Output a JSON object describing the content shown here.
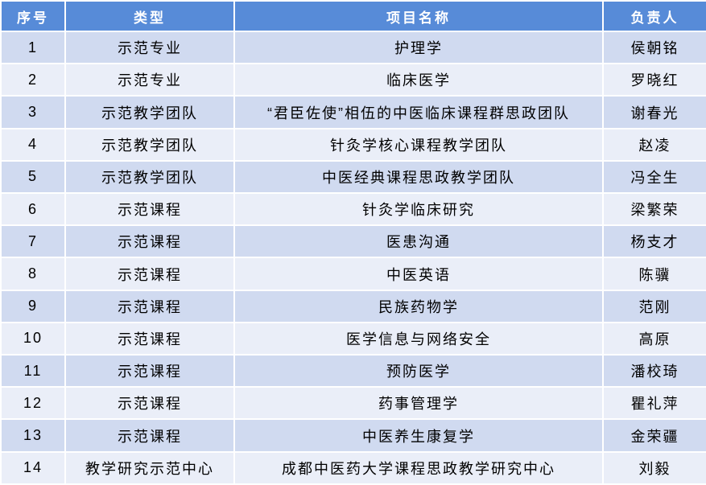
{
  "table": {
    "columns": [
      {
        "key": "index",
        "label": "序号"
      },
      {
        "key": "type",
        "label": "类型"
      },
      {
        "key": "name",
        "label": "项目名称"
      },
      {
        "key": "owner",
        "label": "负责人"
      }
    ],
    "rows": [
      [
        "1",
        "示范专业",
        "护理学",
        "侯朝铭"
      ],
      [
        "2",
        "示范专业",
        "临床医学",
        "罗晓红"
      ],
      [
        "3",
        "示范教学团队",
        "“君臣佐使”相伍的中医临床课程群思政团队",
        "谢春光"
      ],
      [
        "4",
        "示范教学团队",
        "针灸学核心课程教学团队",
        "赵凌"
      ],
      [
        "5",
        "示范教学团队",
        "中医经典课程思政教学团队",
        "冯全生"
      ],
      [
        "6",
        "示范课程",
        "针灸学临床研究",
        "梁繁荣"
      ],
      [
        "7",
        "示范课程",
        "医患沟通",
        "杨支才"
      ],
      [
        "8",
        "示范课程",
        "中医英语",
        "陈骥"
      ],
      [
        "9",
        "示范课程",
        "民族药物学",
        "范刚"
      ],
      [
        "10",
        "示范课程",
        "医学信息与网络安全",
        "高原"
      ],
      [
        "11",
        "示范课程",
        "预防医学",
        "潘校琦"
      ],
      [
        "12",
        "示范课程",
        "药事管理学",
        "瞿礼萍"
      ],
      [
        "13",
        "示范课程",
        "中医养生康复学",
        "金荣疆"
      ],
      [
        "14",
        "教学研究示范中心",
        "成都中医药大学课程思政教学研究中心",
        "刘毅"
      ]
    ],
    "colors": {
      "header_bg": "#578BD8",
      "row_odd_bg": "#D0DAF0",
      "row_even_bg": "#EAEEF8",
      "divider": "#FFFFFF",
      "header_text": "#FFFFFF",
      "body_text": "#000000"
    }
  }
}
